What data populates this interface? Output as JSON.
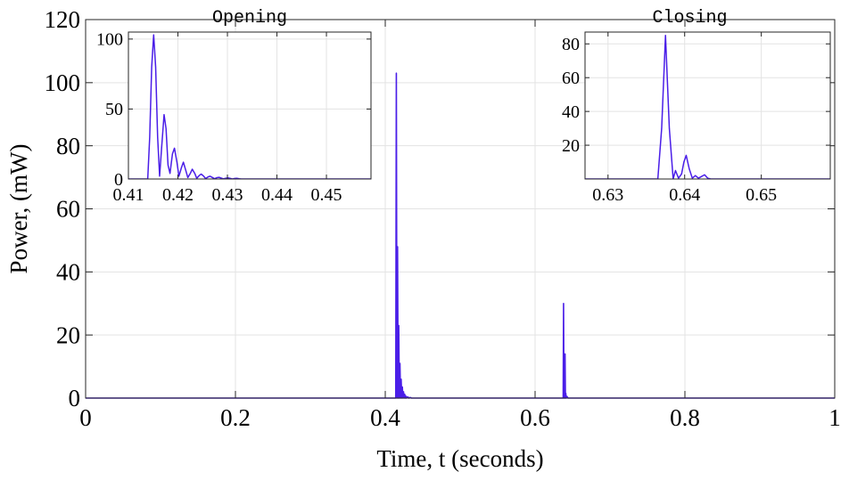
{
  "chart_data": [
    {
      "id": "main",
      "type": "line",
      "xlabel": "Time, t (seconds)",
      "ylabel": "Power, (mW)",
      "xlim": [
        0,
        1
      ],
      "ylim": [
        0,
        120
      ],
      "xticks": [
        0,
        0.2,
        0.4,
        0.6,
        0.8,
        1
      ],
      "xtick_labels": [
        "0",
        "0.2",
        "0.4",
        "0.6",
        "0.8",
        "1"
      ],
      "yticks": [
        0,
        20,
        40,
        60,
        80,
        100,
        120
      ],
      "ytick_labels": [
        "0",
        "20",
        "40",
        "60",
        "80",
        "100",
        "120"
      ],
      "grid": true,
      "series": [
        {
          "color": "#4a1ee8",
          "x": [
            0,
            0.414,
            0.4148,
            0.4156,
            0.4164,
            0.4172,
            0.418,
            0.4188,
            0.4196,
            0.4204,
            0.4212,
            0.422,
            0.4228,
            0.4236,
            0.4244,
            0.4252,
            0.426,
            0.4268,
            0.4276,
            0.4284,
            0.43,
            0.4316,
            0.4332,
            0.435,
            0.6375,
            0.638,
            0.6385,
            0.639,
            0.6395,
            0.64,
            0.6405,
            0.641,
            0.6415,
            0.6425,
            0.644,
            1
          ],
          "y": [
            0,
            0,
            103,
            0,
            48,
            0,
            23,
            0,
            11,
            0,
            6,
            0,
            3.5,
            0,
            2,
            0,
            1.2,
            0,
            0.6,
            0,
            0.4,
            0,
            0.2,
            0,
            0,
            30,
            0,
            4,
            0,
            14,
            0,
            1.5,
            0,
            0.5,
            0,
            0
          ]
        }
      ]
    },
    {
      "id": "inset-opening",
      "type": "line",
      "title": "Opening",
      "xlim": [
        0.41,
        0.459
      ],
      "ylim": [
        0,
        105
      ],
      "xticks": [
        0.41,
        0.42,
        0.43,
        0.44,
        0.45
      ],
      "xtick_labels": [
        "0.41",
        "0.42",
        "0.43",
        "0.44",
        "0.45"
      ],
      "yticks": [
        0,
        50,
        100
      ],
      "ytick_labels": [
        "0",
        "50",
        "100"
      ],
      "grid": true,
      "series": [
        {
          "color": "#4a1ee8",
          "x": [
            0.41,
            0.4139,
            0.4143,
            0.4147,
            0.4151,
            0.4155,
            0.4159,
            0.4163,
            0.4167,
            0.4172,
            0.4176,
            0.418,
            0.4184,
            0.4189,
            0.4193,
            0.4198,
            0.4202,
            0.4207,
            0.4211,
            0.4216,
            0.422,
            0.4225,
            0.4229,
            0.4234,
            0.4238,
            0.4243,
            0.4247,
            0.4252,
            0.4256,
            0.4261,
            0.4265,
            0.427,
            0.4274,
            0.4279,
            0.4283,
            0.4288,
            0.4292,
            0.4297,
            0.4301,
            0.4306,
            0.431,
            0.4315,
            0.4319,
            0.4324,
            0.4328,
            0.4345,
            0.459
          ],
          "y": [
            0,
            0,
            30,
            80,
            103,
            80,
            30,
            2,
            22,
            46,
            36,
            10,
            4,
            18,
            22,
            12,
            2,
            8,
            12,
            6,
            1,
            4,
            7,
            4,
            0.5,
            2.5,
            3.5,
            2,
            0.3,
            1.5,
            2,
            1,
            0.2,
            1,
            1.2,
            0.6,
            0.1,
            0.6,
            0.8,
            0.4,
            0,
            0.4,
            0.5,
            0.2,
            0,
            0,
            0
          ]
        }
      ]
    },
    {
      "id": "inset-closing",
      "type": "line",
      "title": "Closing",
      "xlim": [
        0.627,
        0.659
      ],
      "ylim": [
        0,
        87
      ],
      "xticks": [
        0.63,
        0.64,
        0.65
      ],
      "xtick_labels": [
        "0.63",
        "0.64",
        "0.65"
      ],
      "yticks": [
        20,
        40,
        60,
        80
      ],
      "ytick_labels": [
        "20",
        "40",
        "60",
        "80"
      ],
      "grid": true,
      "series": [
        {
          "color": "#4a1ee8",
          "x": [
            0.627,
            0.6365,
            0.637,
            0.6375,
            0.638,
            0.6385,
            0.6388,
            0.6392,
            0.6396,
            0.6399,
            0.6402,
            0.6406,
            0.641,
            0.6414,
            0.6418,
            0.6422,
            0.6426,
            0.643,
            0.6434,
            0.6445,
            0.659
          ],
          "y": [
            0,
            0,
            30,
            85,
            30,
            0,
            5,
            0.5,
            3,
            10,
            14,
            6,
            0.5,
            2,
            0.5,
            1.5,
            2.5,
            0.5,
            0,
            0,
            0
          ]
        }
      ]
    }
  ]
}
